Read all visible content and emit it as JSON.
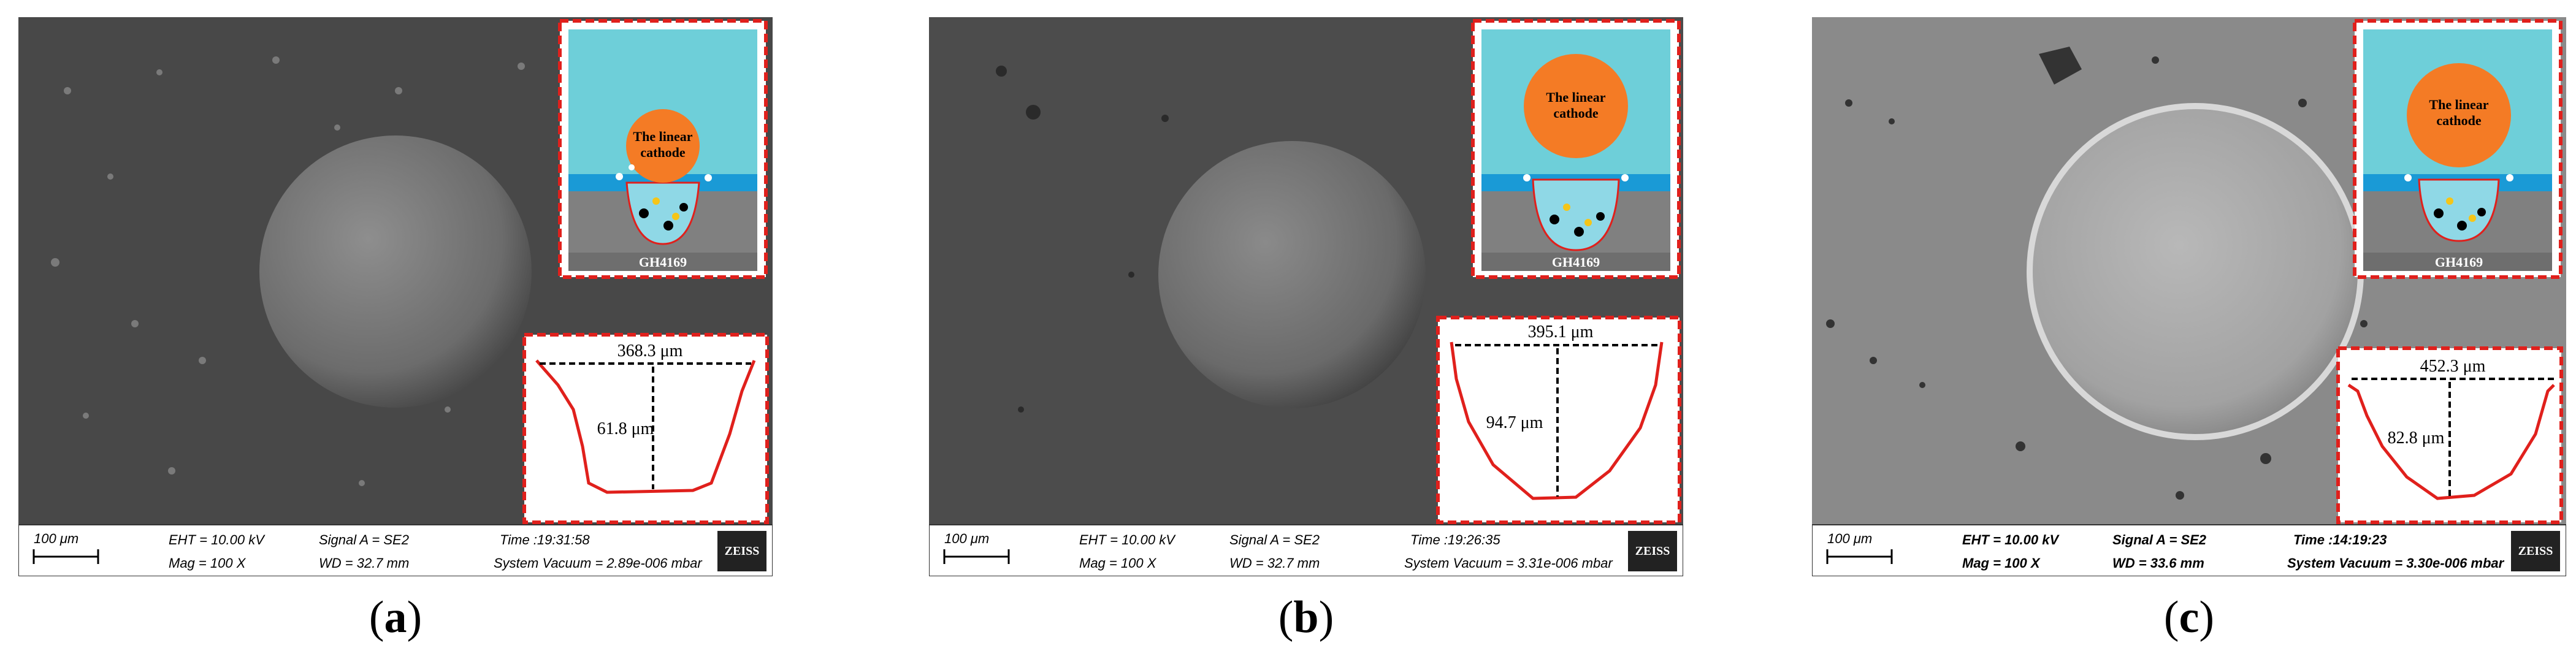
{
  "panels": [
    {
      "id": "a",
      "caption": {
        "open": "(",
        "letter": "a",
        "close": ")"
      },
      "theme": "dark",
      "inset": {
        "title_line1": "The linear",
        "title_line2": "cathode",
        "substrate": "GH4169"
      },
      "profile": {
        "width_label": "368.3 μm",
        "depth_label": "61.8 μm",
        "shape": "trapezoid"
      },
      "databar": {
        "scale": "100 μm",
        "eht": "EHT = 10.00 kV",
        "signal": "Signal A = SE2",
        "time": "Time :19:31:58",
        "mag": "Mag =    100 X",
        "wd": "WD = 32.7 mm",
        "vacuum": "System Vacuum = 2.89e-006 mbar",
        "logo": "ZEISS"
      }
    },
    {
      "id": "b",
      "caption": {
        "open": "(",
        "letter": "b",
        "close": ")"
      },
      "theme": "dark",
      "inset": {
        "title_line1": "The linear",
        "title_line2": "cathode",
        "substrate": "GH4169"
      },
      "profile": {
        "width_label": "395.1 μm",
        "depth_label": "94.7 μm",
        "shape": "bowl"
      },
      "databar": {
        "scale": "100 μm",
        "eht": "EHT = 10.00 kV",
        "signal": "Signal A = SE2",
        "time": "Time :19:26:35",
        "mag": "Mag =    100 X",
        "wd": "WD = 32.7 mm",
        "vacuum": "System Vacuum = 3.31e-006 mbar",
        "logo": "ZEISS"
      }
    },
    {
      "id": "c",
      "caption": {
        "open": "(",
        "letter": "c",
        "close": ")"
      },
      "theme": "light",
      "inset": {
        "title_line1": "The linear",
        "title_line2": "cathode",
        "substrate": "GH4169"
      },
      "profile": {
        "width_label": "452.3 μm",
        "depth_label": "82.8 μm",
        "shape": "wide"
      },
      "databar": {
        "scale": "100 μm",
        "eht": "EHT = 10.00 kV",
        "signal": "Signal A = SE2",
        "time": "Time :14:19:23",
        "mag": "Mag =    100 X",
        "wd": "WD = 33.6 mm",
        "vacuum": "System Vacuum = 3.30e-006 mbar",
        "logo": "ZEISS"
      }
    }
  ],
  "colors": {
    "dark_sem": "#4a4a4a",
    "light_sem": "#8c8c8c",
    "accent_red": "#e0201c",
    "inset_sky": "#6ecfd9",
    "cathode": "#f47b25",
    "substrate": "#808080",
    "electrolyte": "#1a9ad6"
  }
}
